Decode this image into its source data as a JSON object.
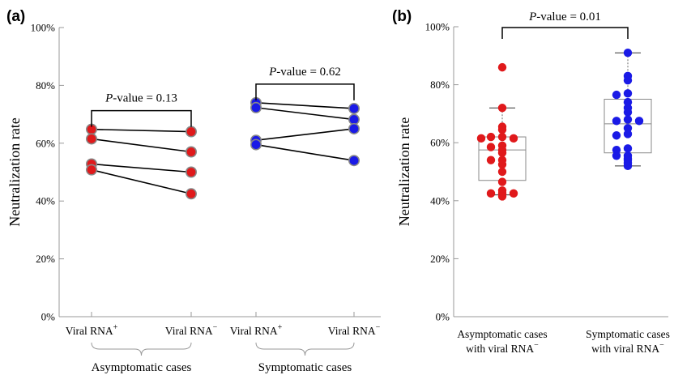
{
  "chart_data": [
    {
      "panel": "(a)",
      "type": "scatter",
      "ylabel": "Neutralization rate",
      "ylim": [
        0,
        100
      ],
      "yticks": [
        "0%",
        "20%",
        "40%",
        "60%",
        "80%",
        "100%"
      ],
      "x_tick_labels": [
        "Viral RNA",
        "Viral RNA",
        "Viral RNA",
        "Viral RNA"
      ],
      "x_tick_superscripts": [
        "+",
        "−",
        "+",
        "−"
      ],
      "groups": [
        {
          "label": "Asymptomatic cases",
          "color": "#e0191b",
          "p_prefix": "P",
          "p_suffix": "-value = 0.13",
          "pairs": [
            [
              64.8,
              64.0
            ],
            [
              61.5,
              57.0
            ],
            [
              52.8,
              50.0
            ],
            [
              50.8,
              42.5
            ]
          ]
        },
        {
          "label": "Symptomatic cases",
          "color": "#1a1ae6",
          "p_prefix": "P",
          "p_suffix": "-value = 0.62",
          "pairs": [
            [
              74.0,
              72.0
            ],
            [
              72.3,
              68.2
            ],
            [
              61.0,
              65.0
            ],
            [
              59.5,
              54.0
            ]
          ]
        }
      ]
    },
    {
      "panel": "(b)",
      "type": "box",
      "ylabel": "Neutralization rate",
      "ylim": [
        0,
        100
      ],
      "yticks": [
        "0%",
        "20%",
        "40%",
        "60%",
        "80%",
        "100%"
      ],
      "p_prefix": "P",
      "p_suffix": "-value = 0.01",
      "series": [
        {
          "name_line1": "Asymptomatic cases",
          "name_line2": "with viral RNA",
          "sup": "−",
          "color": "#e0191b",
          "box": {
            "whisker_low": 42,
            "q1": 47,
            "median": 57.5,
            "q3": 62,
            "whisker_high": 72
          },
          "points": [
            86,
            72,
            65.5,
            64.5,
            62,
            62,
            61.5,
            61.5,
            59,
            58.5,
            57.5,
            56.5,
            54,
            54,
            52.5,
            50,
            46.5,
            43.5,
            42.5,
            42.5,
            42.5,
            41.5
          ]
        },
        {
          "name_line1": "Symptomatic cases",
          "name_line2": "with viral RNA",
          "sup": "−",
          "color": "#1a1ae6",
          "box": {
            "whisker_low": 52,
            "q1": 56.5,
            "median": 66.5,
            "q3": 75,
            "whisker_high": 91
          },
          "points": [
            91,
            83,
            81.5,
            77,
            76.5,
            74,
            72,
            70.5,
            68,
            67.5,
            67.5,
            65,
            63,
            62.5,
            58,
            57.5,
            55.5,
            55.5,
            54.5,
            54,
            53,
            52
          ]
        }
      ]
    }
  ]
}
